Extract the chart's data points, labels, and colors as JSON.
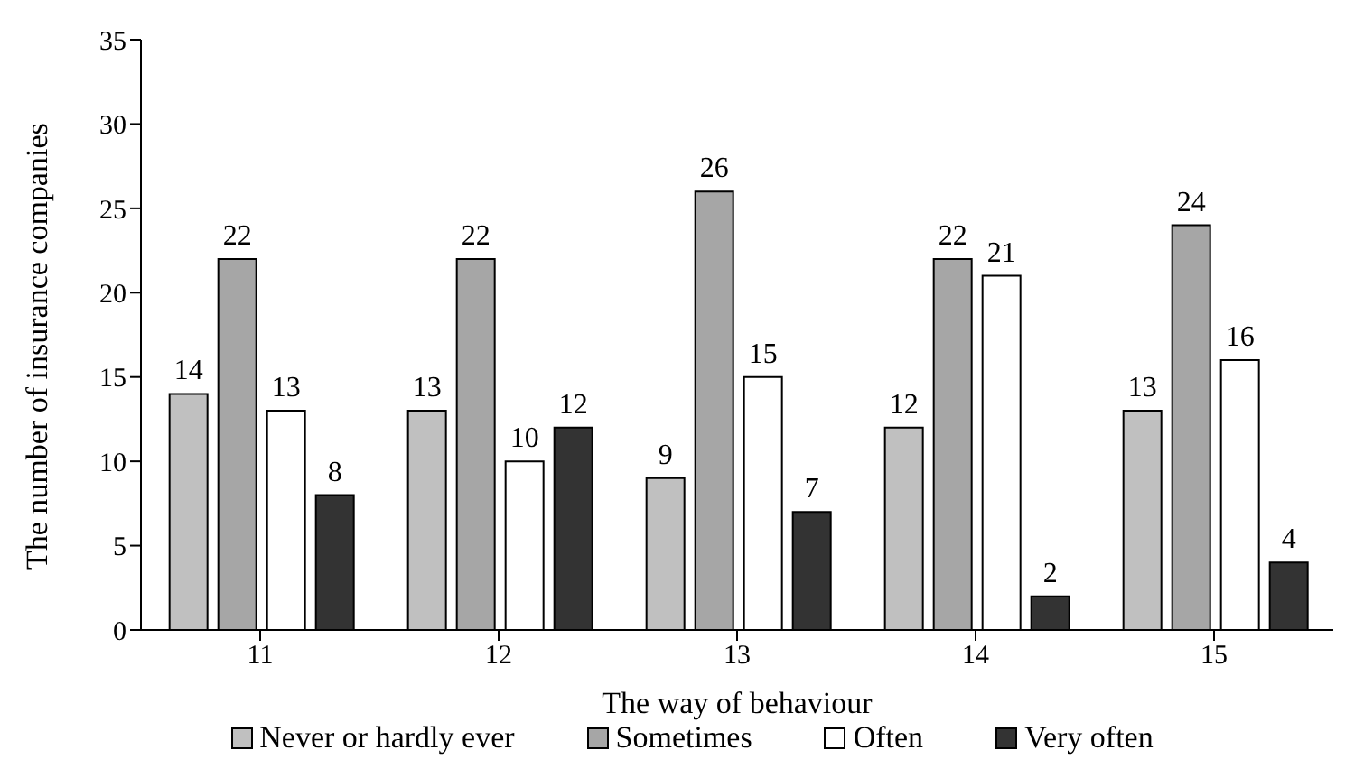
{
  "chart_data": {
    "type": "bar",
    "xlabel": "The way of behaviour",
    "ylabel": "The number of insurance companies",
    "categories": [
      "11",
      "12",
      "13",
      "14",
      "15"
    ],
    "series": [
      {
        "name": "Never or hardly ever",
        "color": "#c0c0c0",
        "values": [
          14,
          13,
          9,
          12,
          13
        ]
      },
      {
        "name": "Sometimes",
        "color": "#a6a6a6",
        "values": [
          22,
          22,
          26,
          22,
          24
        ]
      },
      {
        "name": "Often",
        "color": "#ffffff",
        "values": [
          13,
          10,
          15,
          21,
          16
        ]
      },
      {
        "name": "Very often",
        "color": "#333333",
        "values": [
          8,
          12,
          7,
          2,
          4
        ]
      }
    ],
    "ylim": [
      0,
      35
    ],
    "yticks": [
      0,
      5,
      10,
      15,
      20,
      25,
      30,
      35
    ],
    "legend": "bottom",
    "data_labels": true
  }
}
